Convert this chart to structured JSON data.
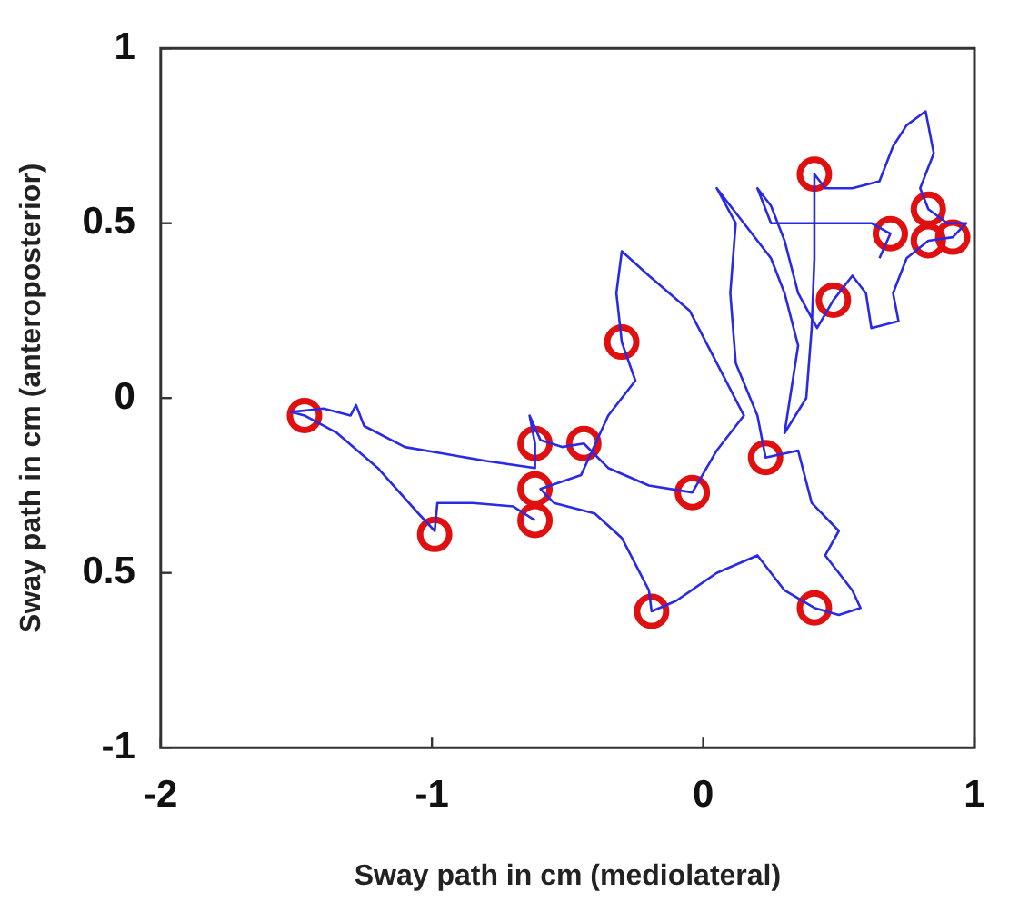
{
  "chart_data": {
    "type": "line",
    "xlabel": "Sway path in cm (mediolateral)",
    "ylabel": "Sway path in cm (anteroposterior)",
    "xlim": [
      -2,
      1
    ],
    "xticks": [
      -2,
      -1,
      0,
      1
    ],
    "ylim": [
      -1,
      1
    ],
    "yticks": [
      1,
      0.5,
      0,
      {
        "value": -0.5,
        "label": "0.5"
      },
      -1
    ],
    "grid": false,
    "series": [
      {
        "color": "#2a2ae6",
        "marker": "none",
        "line_style": "solid",
        "x": [
          -0.62,
          -0.66,
          -0.7,
          -0.85,
          -0.98,
          -0.99,
          -1.05,
          -1.2,
          -1.35,
          -1.47,
          -1.52,
          -1.4,
          -1.3,
          -1.28,
          -1.25,
          -1.1,
          -0.95,
          -0.8,
          -0.62,
          -0.62,
          -0.64,
          -0.6,
          -0.52,
          -0.44,
          -0.35,
          -0.2,
          -0.04,
          0.05,
          0.15,
          0.05,
          -0.05,
          -0.2,
          -0.3,
          -0.32,
          -0.3,
          -0.25,
          -0.35,
          -0.45,
          -0.6,
          -0.55,
          -0.4,
          -0.3,
          -0.2,
          -0.19,
          -0.1,
          0.05,
          0.2,
          0.3,
          0.41,
          0.5,
          0.58,
          0.55,
          0.45,
          0.5,
          0.4,
          0.35,
          0.23,
          0.2,
          0.12,
          0.1,
          0.12,
          0.05,
          0.15,
          0.25,
          0.3,
          0.35,
          0.32,
          0.3,
          0.38,
          0.4,
          0.41,
          0.41,
          0.45,
          0.55,
          0.65,
          0.7,
          0.75,
          0.82,
          0.85,
          0.8,
          0.83,
          0.9,
          0.97,
          0.92,
          0.83,
          0.75,
          0.7,
          0.72,
          0.62,
          0.6,
          0.55,
          0.48,
          0.42,
          0.35,
          0.3,
          0.25,
          0.2,
          0.25,
          0.55,
          0.62,
          0.69,
          0.65
        ],
        "values": [
          -0.35,
          -0.33,
          -0.31,
          -0.3,
          -0.3,
          -0.38,
          -0.33,
          -0.2,
          -0.1,
          -0.05,
          -0.04,
          -0.03,
          -0.05,
          -0.02,
          -0.08,
          -0.14,
          -0.16,
          -0.18,
          -0.2,
          -0.13,
          -0.05,
          -0.12,
          -0.14,
          -0.13,
          -0.2,
          -0.25,
          -0.27,
          -0.15,
          -0.05,
          0.1,
          0.25,
          0.35,
          0.42,
          0.3,
          0.16,
          0.05,
          -0.05,
          -0.22,
          -0.26,
          -0.3,
          -0.33,
          -0.4,
          -0.55,
          -0.61,
          -0.58,
          -0.5,
          -0.45,
          -0.55,
          -0.6,
          -0.62,
          -0.6,
          -0.55,
          -0.45,
          -0.38,
          -0.3,
          -0.15,
          -0.17,
          -0.05,
          0.1,
          0.3,
          0.5,
          0.6,
          0.5,
          0.4,
          0.3,
          0.15,
          0,
          -0.1,
          0,
          0.2,
          0.4,
          0.64,
          0.6,
          0.6,
          0.62,
          0.72,
          0.78,
          0.82,
          0.7,
          0.6,
          0.54,
          0.5,
          0.5,
          0.46,
          0.45,
          0.4,
          0.3,
          0.22,
          0.2,
          0.3,
          0.35,
          0.28,
          0.2,
          0.3,
          0.45,
          0.55,
          0.6,
          0.5,
          0.5,
          0.5,
          0.47,
          0.4
        ]
      },
      {
        "type": "scatter",
        "color": "#e01010",
        "marker": "circle",
        "x": [
          -1.47,
          -0.99,
          -0.62,
          -0.62,
          -0.62,
          -0.44,
          -0.3,
          -0.04,
          -0.19,
          0.23,
          0.41,
          0.48,
          0.41,
          0.69,
          0.83,
          0.83,
          0.92
        ],
        "values": [
          -0.05,
          -0.39,
          -0.13,
          -0.26,
          -0.35,
          -0.13,
          0.16,
          -0.27,
          -0.61,
          -0.17,
          0.64,
          0.28,
          -0.6,
          0.47,
          0.54,
          0.45,
          0.46
        ]
      }
    ]
  }
}
